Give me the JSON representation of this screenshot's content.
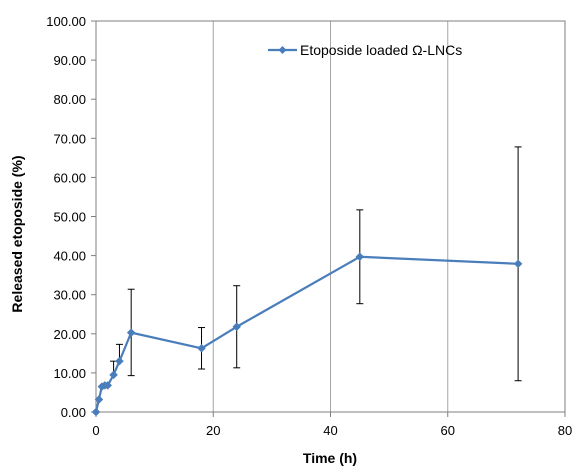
{
  "chart_data": {
    "type": "line",
    "title": "",
    "xlabel": "Time (h)",
    "ylabel": "Released etoposide (%)",
    "xlim": [
      0,
      80
    ],
    "ylim": [
      0,
      100
    ],
    "x_ticks": [
      "0",
      "20",
      "40",
      "60",
      "80"
    ],
    "y_ticks": [
      "0.00",
      "10.00",
      "20.00",
      "30.00",
      "40.00",
      "50.00",
      "60.00",
      "70.00",
      "80.00",
      "90.00",
      "100.00"
    ],
    "grid": "vertical",
    "legend_position": "top-right",
    "series": [
      {
        "name": "Etoposide loaded Ω-LNCs",
        "color": "#4a7ebb",
        "marker": "diamond",
        "x": [
          0,
          0.5,
          1,
          1.5,
          2,
          3,
          4,
          6,
          18,
          24,
          45,
          72
        ],
        "y": [
          0.0,
          3.2,
          6.5,
          6.8,
          6.8,
          9.5,
          13.0,
          20.3,
          16.3,
          21.8,
          39.7,
          37.9
        ],
        "error_low": [
          0.0,
          3.2,
          6.5,
          6.8,
          6.8,
          9.5,
          13.0,
          9.3,
          11.0,
          11.3,
          27.7,
          8.0
        ],
        "error_high": [
          0.0,
          3.2,
          6.5,
          6.8,
          6.8,
          13.0,
          17.3,
          31.4,
          21.6,
          32.3,
          51.7,
          67.8
        ]
      }
    ]
  }
}
